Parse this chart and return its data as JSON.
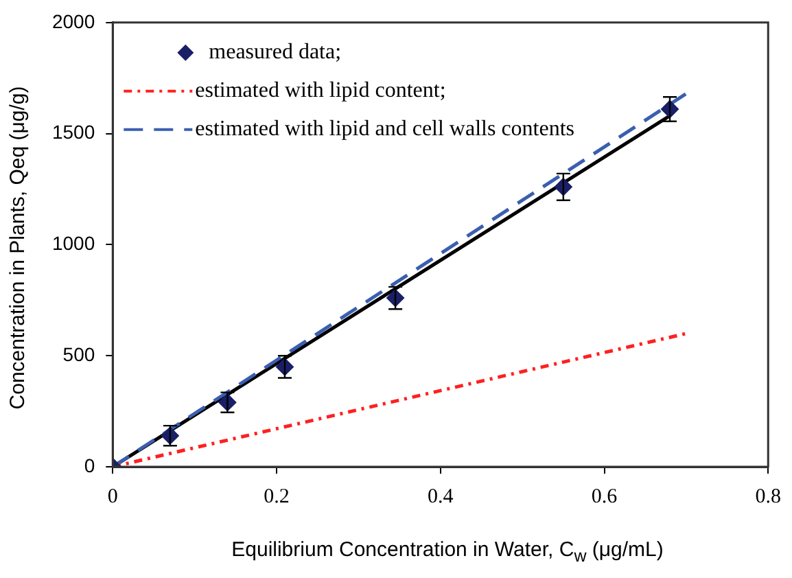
{
  "chart_data": {
    "type": "scatter",
    "xlabel": "Equilibrium Concentration in Water, C$_{w}$ (μg/mL)",
    "ylabel": "Concentration in Plants, Qeq (μg/g)",
    "xlim": [
      0,
      0.8
    ],
    "xticks": [
      0,
      0.2,
      0.4,
      0.6,
      0.8
    ],
    "ylim": [
      0,
      2000
    ],
    "yticks": [
      0,
      500,
      1000,
      1500,
      2000
    ],
    "grid": false,
    "legend": "top left",
    "series": [
      {
        "name": "measured data;",
        "color": "#1a1f66",
        "marker": "diamond",
        "x": [
          0,
          0.07,
          0.14,
          0.21,
          0.345,
          0.55,
          0.68
        ],
        "values": [
          0,
          140,
          290,
          450,
          760,
          1260,
          1610
        ],
        "errors": [
          null,
          45,
          45,
          50,
          50,
          60,
          55
        ]
      },
      {
        "name": "estimated with lipid content;",
        "type": "line",
        "color": "#ff2020",
        "line_style": "dotted",
        "marker": "none",
        "x": [
          0,
          0.7
        ],
        "values": [
          0,
          600
        ]
      },
      {
        "name": "estimated with lipid and cell walls contents",
        "type": "line",
        "color": "#3a5fb0",
        "line_style": "dashed",
        "marker": "none",
        "x": [
          0,
          0.7
        ],
        "values": [
          0,
          1680
        ]
      },
      {
        "type": "line",
        "color": "#000000",
        "line_style": "solid",
        "marker": "none",
        "x": [
          0,
          0.68
        ],
        "values": [
          0,
          1580
        ]
      }
    ]
  }
}
